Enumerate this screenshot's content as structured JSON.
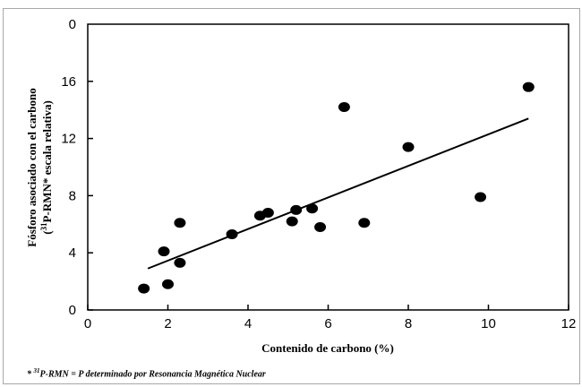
{
  "chart_data": {
    "type": "scatter",
    "title": "",
    "xlabel": "Contenido de carbono (%)",
    "ylabel_line1": "Fósforo asociado con el carbono",
    "ylabel_line2_sup": "31",
    "ylabel_line2_rest": "P-RMN* escala relativa)",
    "ylabel_line2_open": "(",
    "xlim": [
      0,
      12
    ],
    "ylim": [
      0,
      20
    ],
    "x_ticks": [
      0,
      2,
      4,
      6,
      8,
      10,
      12
    ],
    "y_ticks": [
      0,
      4,
      8,
      12,
      16
    ],
    "y_top_tick_label": "0",
    "points": [
      {
        "x": 1.4,
        "y": 1.5
      },
      {
        "x": 1.9,
        "y": 4.1
      },
      {
        "x": 2.0,
        "y": 1.8
      },
      {
        "x": 2.3,
        "y": 3.3
      },
      {
        "x": 2.3,
        "y": 6.1
      },
      {
        "x": 3.6,
        "y": 5.3
      },
      {
        "x": 4.3,
        "y": 6.6
      },
      {
        "x": 4.5,
        "y": 6.8
      },
      {
        "x": 5.1,
        "y": 6.2
      },
      {
        "x": 5.2,
        "y": 7.0
      },
      {
        "x": 5.6,
        "y": 7.1
      },
      {
        "x": 5.8,
        "y": 5.8
      },
      {
        "x": 6.4,
        "y": 14.2
      },
      {
        "x": 6.9,
        "y": 6.1
      },
      {
        "x": 8.0,
        "y": 11.4
      },
      {
        "x": 9.8,
        "y": 7.9
      },
      {
        "x": 11.0,
        "y": 15.6
      }
    ],
    "trendline": {
      "x1": 1.5,
      "y1": 2.9,
      "x2": 11.0,
      "y2": 13.4
    },
    "grid": false,
    "legend": "none"
  },
  "footnote": {
    "prefix": "* ",
    "sup": "31",
    "text": "P-RMN = P determinado por Resonancia Magnética Nuclear"
  }
}
